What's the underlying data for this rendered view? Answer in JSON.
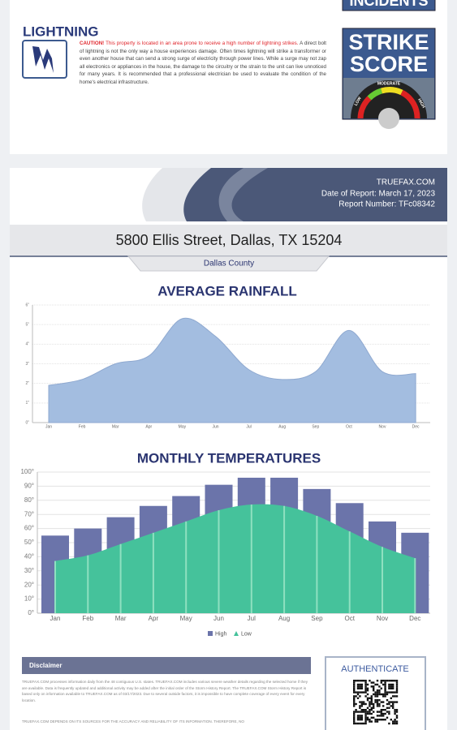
{
  "incidents_heading": "INCIDENTS",
  "lightning": {
    "title": "LIGHTNING",
    "caution": "CAUTION!",
    "caution_text": "This property is located in an area prone to receive a high number of lightning strikes.",
    "body": "A direct bolt of lightning is not the only way a house experiences damage. Often times lightning will strike a transformer or even another house that can send a strong surge of electricity through power lines. While a surge may not zap all electronics or appliances in the house, the damage to the circuitry or the strain to the unit can live unnoticed for many years. It is recommended that a professional electrician be used to evaluate the condition of the home's electrical infrastructure.",
    "badge": {
      "line1": "STRIKE",
      "line2": "SCORE",
      "levels": [
        "LOW",
        "MODERATE",
        "HIGH"
      ]
    }
  },
  "report": {
    "site": "TRUEFAX.COM",
    "date": "Date of Report: March 17, 2023",
    "number": "Report Number: TFc08342",
    "address": "5800 Ellis Street, Dallas, TX 15204",
    "county": "Dallas County"
  },
  "chart_data": [
    {
      "type": "area",
      "title": "AVERAGE RAINFALL",
      "categories": [
        "Jan",
        "Feb",
        "Mar",
        "Apr",
        "May",
        "Jun",
        "Jul",
        "Aug",
        "Sep",
        "Oct",
        "Nov",
        "Dec"
      ],
      "values": [
        1.9,
        2.2,
        3.0,
        3.4,
        5.3,
        4.4,
        2.7,
        2.2,
        2.6,
        4.7,
        2.6,
        2.5
      ],
      "color": "#a3bde0",
      "ylim": [
        0,
        6
      ],
      "yticks": [
        {
          "value": 0,
          "label": "0\""
        },
        {
          "value": 1,
          "label": "1\""
        },
        {
          "value": 2,
          "label": "2\""
        },
        {
          "value": 3,
          "label": "3\""
        },
        {
          "value": 4,
          "label": "4\""
        },
        {
          "value": 5,
          "label": "5\""
        },
        {
          "value": 6,
          "label": "6\""
        }
      ],
      "grid": true
    },
    {
      "type": "bar",
      "title": "MONTHLY TEMPERATURES",
      "categories": [
        "Jan",
        "Feb",
        "Mar",
        "Apr",
        "May",
        "Jun",
        "Jul",
        "Aug",
        "Sep",
        "Oct",
        "Nov",
        "Dec"
      ],
      "series": [
        {
          "name": "High",
          "type": "bar",
          "color": "#6b74aa",
          "values": [
            55,
            60,
            68,
            76,
            83,
            91,
            96,
            96,
            88,
            78,
            65,
            57
          ]
        },
        {
          "name": "Low",
          "type": "area",
          "color": "#45c29b",
          "values": [
            37,
            41,
            49,
            57,
            65,
            73,
            77,
            76,
            69,
            58,
            47,
            39
          ]
        }
      ],
      "ylim": [
        0,
        100
      ],
      "yticks": [
        {
          "value": 0,
          "label": "0°"
        },
        {
          "value": 10,
          "label": "10°"
        },
        {
          "value": 20,
          "label": "20°"
        },
        {
          "value": 30,
          "label": "30°"
        },
        {
          "value": 40,
          "label": "40°"
        },
        {
          "value": 50,
          "label": "50°"
        },
        {
          "value": 60,
          "label": "60°"
        },
        {
          "value": 70,
          "label": "70°"
        },
        {
          "value": 80,
          "label": "80°"
        },
        {
          "value": 90,
          "label": "90°"
        },
        {
          "value": 100,
          "label": "100°"
        }
      ],
      "grid": true,
      "legend": "bottom"
    }
  ],
  "disclaimer": {
    "title": "Disclaimer",
    "paragraphs": [
      "TRUEFAX.COM processes information daily from the 48 contiguous U.S. states. TRUEFAX.COM includes various severe weather details regarding the selected home if they are available. Data is frequently updated and additional activity may be added after the initial order of the Storm History Report. The TRUEFAX.COM Storm History Report is based only on information available to TRUEFAX.COM as of 03/17/2023. Due to several outside factors, it is impossible to have complete coverage of every event for every location.",
      "TRUEFAX.COM DEPENDS ON ITS SOURCES FOR THE ACCURACY AND RELIABILITY OF ITS INFORMATION. THEREFORE, NO"
    ]
  },
  "authenticate": "AUTHENTICATE"
}
